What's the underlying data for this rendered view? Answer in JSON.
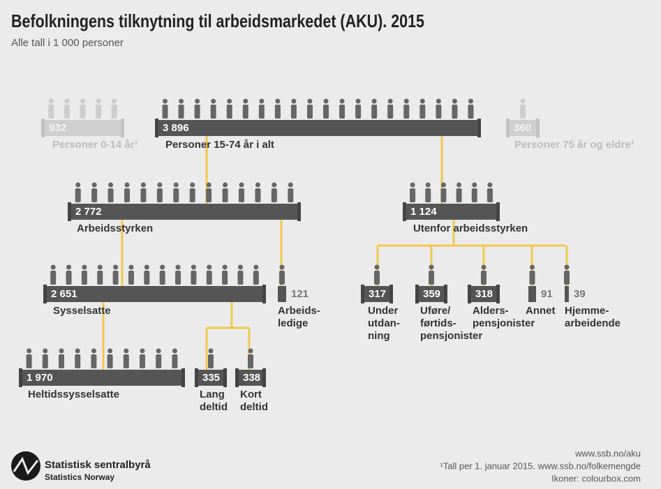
{
  "header": {
    "title": "Befolkningens tilknytning til arbeidsmarkedet (AKU). 2015",
    "subtitle": "Alle tall i 1 000 personer"
  },
  "nodes": [
    {
      "value": "932",
      "label": [
        "Personer 0-14 år¹"
      ]
    },
    {
      "value": "3 896",
      "label": [
        "Personer 15-74 år i alt"
      ]
    },
    {
      "value": "360",
      "label": [
        "Personer 75 år og eldre¹"
      ]
    },
    {
      "value": "2 772",
      "label": [
        "Arbeidsstyrken"
      ]
    },
    {
      "value": "1 124",
      "label": [
        "Utenfor arbeidsstyrken"
      ]
    },
    {
      "value": "2 651",
      "label": [
        "Sysselsatte"
      ]
    },
    {
      "value": "121",
      "label": [
        "Arbeids-",
        "ledige"
      ]
    },
    {
      "value": "1 970",
      "label": [
        "Heltidssysselsatte"
      ]
    },
    {
      "value": "335",
      "label": [
        "Lang",
        "deltid"
      ]
    },
    {
      "value": "338",
      "label": [
        "Kort",
        "deltid"
      ]
    },
    {
      "value": "317",
      "label": [
        "Under",
        "utdan-",
        "ning"
      ]
    },
    {
      "value": "359",
      "label": [
        "Uføre/",
        "førtids-",
        "pensjonister"
      ]
    },
    {
      "value": "318",
      "label": [
        "Alders-",
        "pensjonister"
      ]
    },
    {
      "value": "91",
      "label": [
        "Annet"
      ]
    },
    {
      "value": "39",
      "label": [
        "Hjemme-",
        "arbeidende"
      ]
    }
  ],
  "footer": {
    "lines": [
      "www.ssb.no/aku",
      "¹Tall per 1. januar 2015. www.ssb.no/folkemengde",
      "Ikoner: colourbox.com"
    ],
    "org": "Statistisk sentralbyrå",
    "org_en": "Statistics Norway"
  }
}
